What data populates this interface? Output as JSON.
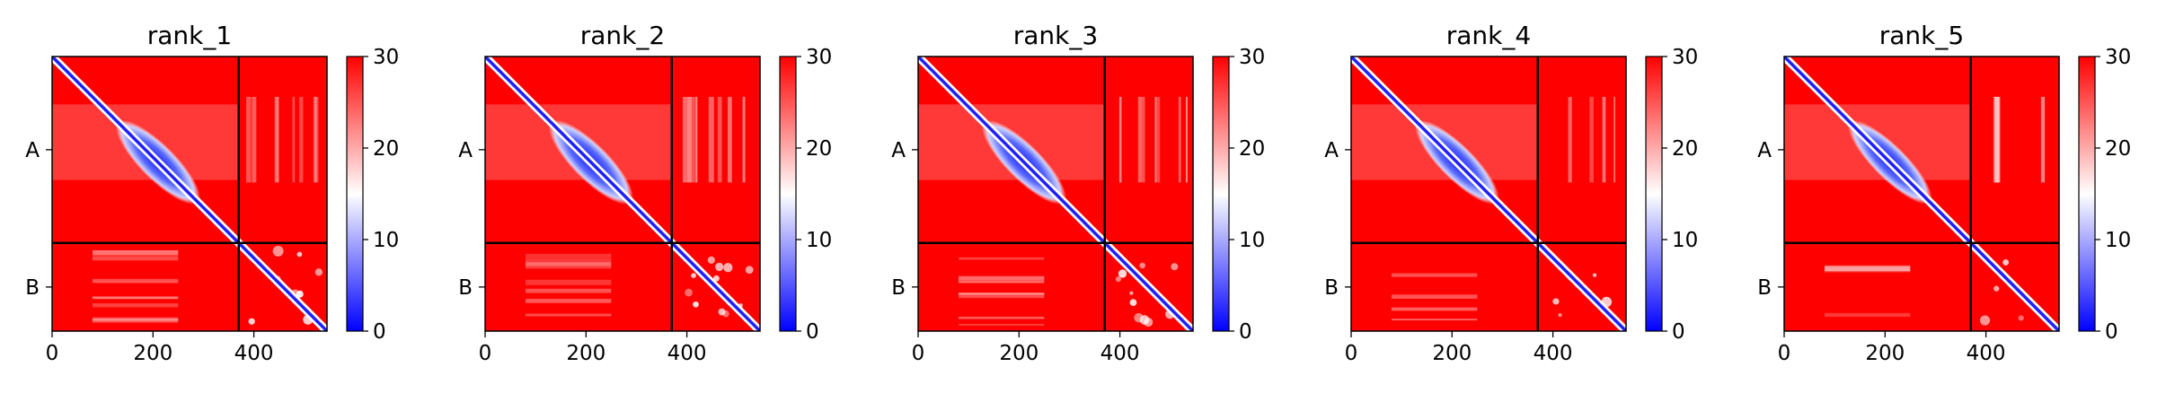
{
  "chart_data": [
    {
      "type": "heatmap",
      "title": "rank_1",
      "xlabel": "",
      "ylabel": "",
      "x_ticks": [
        0,
        200,
        400
      ],
      "y_tick_labels": [
        "A",
        "B"
      ],
      "chain_lengths": [
        370,
        175
      ],
      "xlim": [
        0,
        545
      ],
      "colorbar": {
        "min": 0,
        "max": 30,
        "ticks": [
          0,
          10,
          20,
          30
        ],
        "colors": [
          "#0000ff",
          "#ffffff",
          "#ff0000"
        ]
      },
      "diag_band": {
        "start": 130,
        "end": 290,
        "peak_width": 70
      },
      "inter_chain_patches": 0.55
    },
    {
      "type": "heatmap",
      "title": "rank_2",
      "xlabel": "",
      "ylabel": "",
      "x_ticks": [
        0,
        200,
        400
      ],
      "y_tick_labels": [
        "A",
        "B"
      ],
      "chain_lengths": [
        370,
        175
      ],
      "xlim": [
        0,
        545
      ],
      "colorbar": {
        "min": 0,
        "max": 30,
        "ticks": [
          0,
          10,
          20,
          30
        ],
        "colors": [
          "#0000ff",
          "#ffffff",
          "#ff0000"
        ]
      },
      "diag_band": {
        "start": 130,
        "end": 290,
        "peak_width": 72
      },
      "inter_chain_patches": 0.6
    },
    {
      "type": "heatmap",
      "title": "rank_3",
      "xlabel": "",
      "ylabel": "",
      "x_ticks": [
        0,
        200,
        400
      ],
      "y_tick_labels": [
        "A",
        "B"
      ],
      "chain_lengths": [
        370,
        175
      ],
      "xlim": [
        0,
        545
      ],
      "colorbar": {
        "min": 0,
        "max": 30,
        "ticks": [
          0,
          10,
          20,
          30
        ],
        "colors": [
          "#0000ff",
          "#ffffff",
          "#ff0000"
        ]
      },
      "diag_band": {
        "start": 130,
        "end": 290,
        "peak_width": 70
      },
      "inter_chain_patches": 0.5
    },
    {
      "type": "heatmap",
      "title": "rank_4",
      "xlabel": "",
      "ylabel": "",
      "x_ticks": [
        0,
        200,
        400
      ],
      "y_tick_labels": [
        "A",
        "B"
      ],
      "chain_lengths": [
        370,
        175
      ],
      "xlim": [
        0,
        545
      ],
      "colorbar": {
        "min": 0,
        "max": 30,
        "ticks": [
          0,
          10,
          20,
          30
        ],
        "colors": [
          "#0000ff",
          "#ffffff",
          "#ff0000"
        ]
      },
      "diag_band": {
        "start": 130,
        "end": 290,
        "peak_width": 68
      },
      "inter_chain_patches": 0.25
    },
    {
      "type": "heatmap",
      "title": "rank_5",
      "xlabel": "",
      "ylabel": "",
      "x_ticks": [
        0,
        200,
        400
      ],
      "y_tick_labels": [
        "A",
        "B"
      ],
      "chain_lengths": [
        370,
        175
      ],
      "xlim": [
        0,
        545
      ],
      "colorbar": {
        "min": 0,
        "max": 30,
        "ticks": [
          0,
          10,
          20,
          30
        ],
        "colors": [
          "#0000ff",
          "#ffffff",
          "#ff0000"
        ]
      },
      "diag_band": {
        "start": 130,
        "end": 290,
        "peak_width": 66
      },
      "inter_chain_patches": 0.2
    }
  ]
}
